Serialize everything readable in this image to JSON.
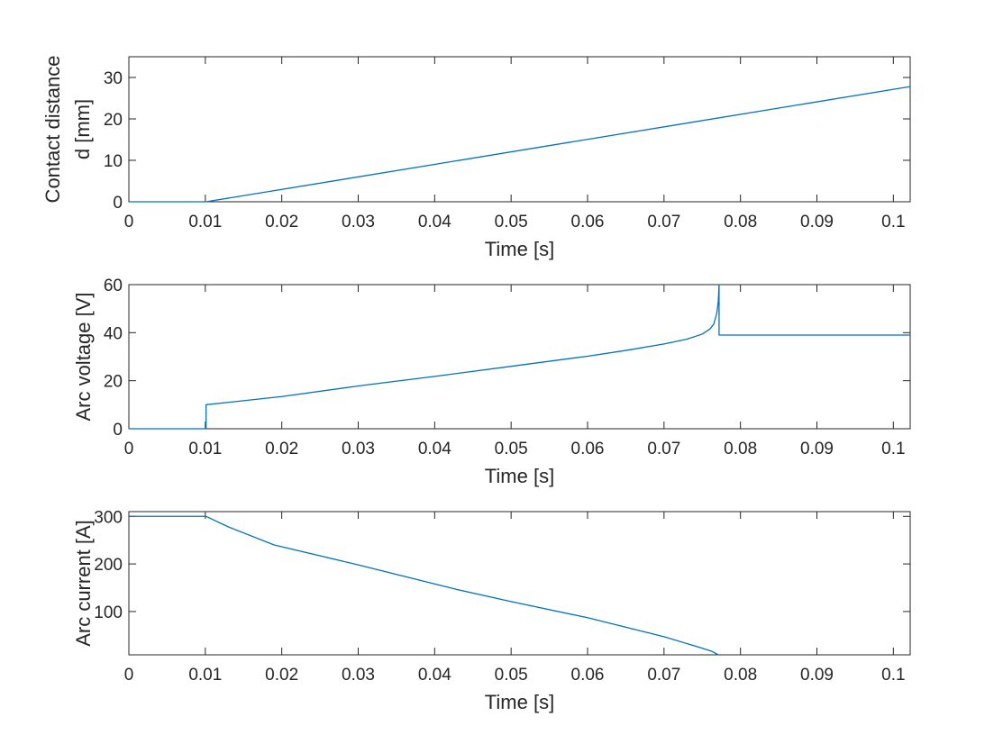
{
  "chart_data": [
    {
      "type": "line",
      "title": "",
      "xlabel": "Time [s]",
      "ylabel": [
        "Contact distance",
        "d [mm]"
      ],
      "xlim": [
        0,
        0.1022
      ],
      "ylim": [
        0,
        35
      ],
      "xticks": [
        0,
        0.01,
        0.02,
        0.03,
        0.04,
        0.05,
        0.06,
        0.07,
        0.08,
        0.09,
        0.1
      ],
      "xtick_labels": [
        "0",
        "0.01",
        "0.02",
        "0.03",
        "0.04",
        "0.05",
        "0.06",
        "0.07",
        "0.08",
        "0.09",
        "0.1"
      ],
      "yticks": [
        0,
        10,
        20,
        30
      ],
      "ytick_labels": [
        "0",
        "10",
        "20",
        "30"
      ],
      "grid": false,
      "color": "#0072BD",
      "series": [
        {
          "x": [
            0,
            0.0101,
            0.1022
          ],
          "y": [
            0,
            0,
            27.8
          ]
        }
      ]
    },
    {
      "type": "line",
      "title": "",
      "xlabel": "Time [s]",
      "ylabel": [
        "Arc voltage [V]"
      ],
      "xlim": [
        0,
        0.1022
      ],
      "ylim": [
        0,
        60
      ],
      "xticks": [
        0,
        0.01,
        0.02,
        0.03,
        0.04,
        0.05,
        0.06,
        0.07,
        0.08,
        0.09,
        0.1
      ],
      "xtick_labels": [
        "0",
        "0.01",
        "0.02",
        "0.03",
        "0.04",
        "0.05",
        "0.06",
        "0.07",
        "0.08",
        "0.09",
        "0.1"
      ],
      "yticks": [
        0,
        20,
        40,
        60
      ],
      "ytick_labels": [
        "0",
        "20",
        "40",
        "60"
      ],
      "grid": false,
      "color": "#0072BD",
      "series": [
        {
          "x": [
            0,
            0.0101,
            0.0101,
            0.02,
            0.03,
            0.04,
            0.05,
            0.06,
            0.065,
            0.07,
            0.073,
            0.075,
            0.076,
            0.0765,
            0.0769,
            0.0771,
            0.0772,
            0.0772,
            0.0773,
            0.1022
          ],
          "y": [
            0,
            0,
            10,
            13.4,
            17.8,
            21.8,
            26.0,
            30.2,
            32.6,
            35.3,
            37.3,
            39.4,
            41.5,
            43.5,
            48.0,
            53.0,
            60.0,
            39.0,
            39.0,
            39.0
          ]
        }
      ]
    },
    {
      "type": "line",
      "title": "",
      "xlabel": "Time [s]",
      "ylabel": [
        "Arc current [A]"
      ],
      "xlim": [
        0,
        0.1022
      ],
      "ylim": [
        9,
        310
      ],
      "xticks": [
        0,
        0.01,
        0.02,
        0.03,
        0.04,
        0.05,
        0.06,
        0.07,
        0.08,
        0.09,
        0.1
      ],
      "xtick_labels": [
        "0",
        "0.01",
        "0.02",
        "0.03",
        "0.04",
        "0.05",
        "0.06",
        "0.07",
        "0.08",
        "0.09",
        "0.1"
      ],
      "yticks": [
        100,
        200,
        300
      ],
      "ytick_labels": [
        "100",
        "200",
        "300"
      ],
      "grid": false,
      "color": "#0072BD",
      "series": [
        {
          "x": [
            0,
            0.0101,
            0.013,
            0.019,
            0.03,
            0.043,
            0.05,
            0.06,
            0.07,
            0.075,
            0.0763,
            0.0771
          ],
          "y": [
            300,
            300,
            278,
            240,
            198,
            146,
            121,
            87,
            47,
            23,
            16,
            9
          ]
        }
      ]
    }
  ]
}
